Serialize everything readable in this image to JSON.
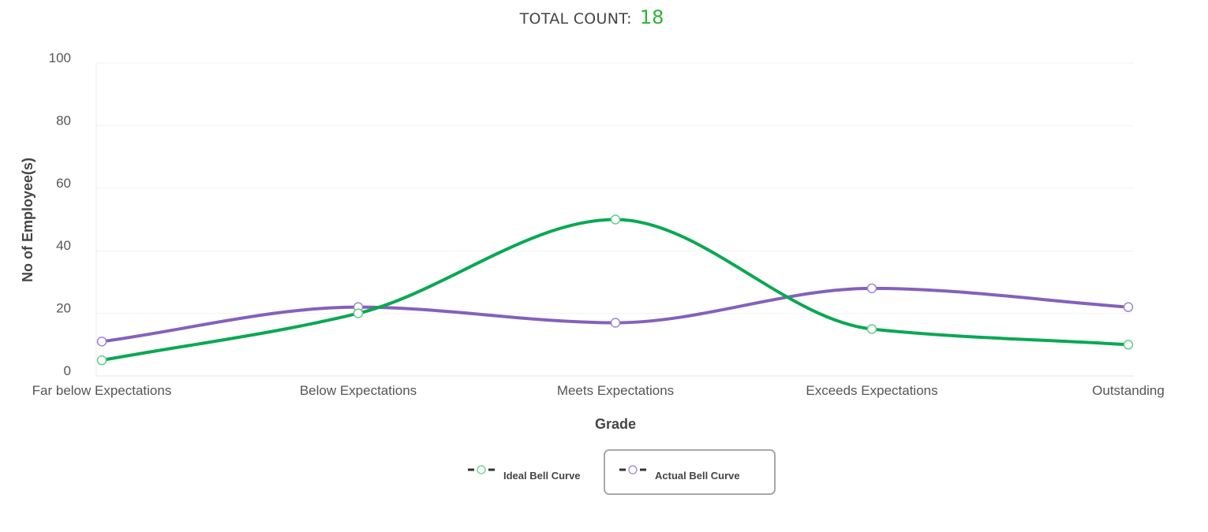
{
  "header": {
    "total_count_label": "TOTAL COUNT:",
    "total_count_value": "18"
  },
  "chart_data": {
    "type": "line",
    "xlabel": "Grade",
    "ylabel": "No of Employee(s)",
    "categories": [
      "Far below Expectations",
      "Below Expectations",
      "Meets Expectations",
      "Exceeds Expectations",
      "Outstanding"
    ],
    "ylim": [
      0,
      100
    ],
    "yticks": [
      0,
      20,
      40,
      60,
      80,
      100
    ],
    "grid": true,
    "smooth": true,
    "legend_position": "bottom-center",
    "series": [
      {
        "name": "Ideal Bell Curve",
        "color": "#0aa853",
        "marker_color": "#5fcf8a",
        "values": [
          5,
          20,
          50,
          15,
          10
        ]
      },
      {
        "name": "Actual Bell Curve",
        "color": "#8461bb",
        "marker_color": "#9d86cc",
        "values": [
          11,
          22,
          17,
          28,
          22
        ]
      }
    ]
  }
}
